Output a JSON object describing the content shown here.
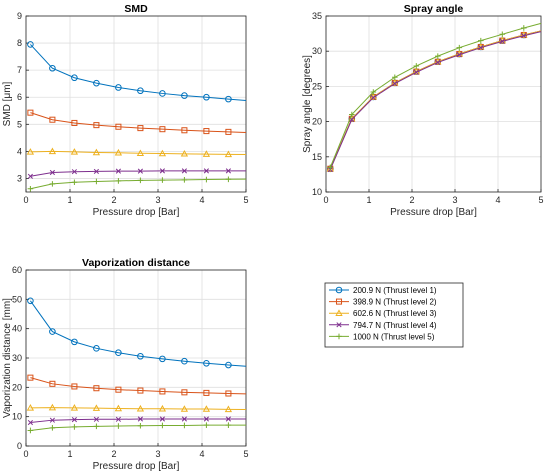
{
  "chart_data": [
    {
      "type": "line",
      "title": "SMD",
      "xlabel": "Pressure drop [Bar]",
      "ylabel": "SMD [μm]",
      "xlim": [
        0,
        5
      ],
      "ylim": [
        2.5,
        9
      ],
      "xticks": [
        "0",
        "1",
        "2",
        "3",
        "4",
        "5"
      ],
      "yticks": [
        "3",
        "4",
        "5",
        "6",
        "7",
        "8",
        "9"
      ],
      "grid": true,
      "x": [
        0.1,
        0.6,
        1.1,
        1.6,
        2.1,
        2.6,
        3.1,
        3.6,
        4.1,
        4.6
      ],
      "series": [
        {
          "name": "200.9 N (Thrust level 1)",
          "values": [
            7.95,
            7.07,
            6.72,
            6.52,
            6.36,
            6.24,
            6.14,
            6.06,
            6.0,
            5.93
          ]
        },
        {
          "name": "398.9 N (Thrust level 2)",
          "values": [
            5.43,
            5.17,
            5.05,
            4.97,
            4.91,
            4.86,
            4.82,
            4.78,
            4.75,
            4.72
          ]
        },
        {
          "name": "602.6 N (Thrust level 3)",
          "values": [
            3.98,
            4.0,
            3.98,
            3.96,
            3.95,
            3.93,
            3.92,
            3.91,
            3.9,
            3.89
          ]
        },
        {
          "name": "794.7 N (Thrust level 4)",
          "values": [
            3.08,
            3.22,
            3.25,
            3.26,
            3.27,
            3.27,
            3.28,
            3.28,
            3.28,
            3.28
          ]
        },
        {
          "name": "1000 N (Thrust level 5)",
          "values": [
            2.62,
            2.8,
            2.86,
            2.89,
            2.91,
            2.93,
            2.94,
            2.95,
            2.96,
            2.97
          ]
        }
      ]
    },
    {
      "type": "line",
      "title": "Spray angle",
      "xlabel": "Pressure drop [Bar]",
      "ylabel": "Spray angle [degrees]",
      "xlim": [
        0,
        5
      ],
      "ylim": [
        10,
        35
      ],
      "xticks": [
        "0",
        "1",
        "2",
        "3",
        "4",
        "5"
      ],
      "yticks": [
        "10",
        "15",
        "20",
        "25",
        "30",
        "35"
      ],
      "grid": true,
      "x": [
        0.1,
        0.6,
        1.1,
        1.6,
        2.1,
        2.6,
        3.1,
        3.6,
        4.1,
        4.6
      ],
      "series": [
        {
          "name": "200.9 N (Thrust level 1)",
          "values": [
            13.3,
            20.4,
            23.5,
            25.5,
            27.1,
            28.5,
            29.6,
            30.6,
            31.5,
            32.3
          ]
        },
        {
          "name": "398.9 N (Thrust level 2)",
          "values": [
            13.3,
            20.4,
            23.5,
            25.5,
            27.1,
            28.5,
            29.6,
            30.6,
            31.5,
            32.3
          ]
        },
        {
          "name": "602.6 N (Thrust level 3)",
          "values": [
            13.3,
            20.4,
            23.5,
            25.5,
            27.1,
            28.5,
            29.6,
            30.6,
            31.5,
            32.3
          ]
        },
        {
          "name": "794.7 N (Thrust level 4)",
          "values": [
            13.2,
            20.3,
            23.4,
            25.4,
            27.0,
            28.4,
            29.5,
            30.5,
            31.4,
            32.2
          ]
        },
        {
          "name": "1000 N (Thrust level 5)",
          "values": [
            13.5,
            21.0,
            24.2,
            26.3,
            27.9,
            29.3,
            30.5,
            31.5,
            32.4,
            33.3
          ]
        }
      ]
    },
    {
      "type": "line",
      "title": "Vaporization distance",
      "xlabel": "Pressure drop [Bar]",
      "ylabel": "Vaporization distance [mm]",
      "xlim": [
        0,
        5
      ],
      "ylim": [
        0,
        60
      ],
      "xticks": [
        "0",
        "1",
        "2",
        "3",
        "4",
        "5"
      ],
      "yticks": [
        "0",
        "10",
        "20",
        "30",
        "40",
        "50",
        "60"
      ],
      "grid": true,
      "x": [
        0.1,
        0.6,
        1.1,
        1.6,
        2.1,
        2.6,
        3.1,
        3.6,
        4.1,
        4.6
      ],
      "series": [
        {
          "name": "200.9 N (Thrust level 1)",
          "values": [
            49.5,
            39.0,
            35.5,
            33.3,
            31.8,
            30.6,
            29.7,
            28.9,
            28.2,
            27.6
          ]
        },
        {
          "name": "398.9 N (Thrust level 2)",
          "values": [
            23.3,
            21.2,
            20.3,
            19.7,
            19.2,
            18.9,
            18.6,
            18.3,
            18.1,
            17.9
          ]
        },
        {
          "name": "602.6 N (Thrust level 3)",
          "values": [
            13.0,
            13.1,
            13.0,
            12.9,
            12.8,
            12.7,
            12.7,
            12.6,
            12.6,
            12.5
          ]
        },
        {
          "name": "794.7 N (Thrust level 4)",
          "values": [
            8.0,
            8.8,
            9.0,
            9.1,
            9.1,
            9.2,
            9.2,
            9.2,
            9.2,
            9.2
          ]
        },
        {
          "name": "1000 N (Thrust level 5)",
          "values": [
            5.3,
            6.2,
            6.5,
            6.7,
            6.8,
            6.9,
            7.0,
            7.0,
            7.1,
            7.1
          ]
        }
      ]
    }
  ],
  "legend": {
    "placement": "bottom-right",
    "entries": [
      {
        "label": "200.9 N (Thrust level 1)",
        "color": "#0072BD",
        "marker": "circle"
      },
      {
        "label": "398.9 N (Thrust level 2)",
        "color": "#D95319",
        "marker": "square"
      },
      {
        "label": "602.6 N (Thrust level 3)",
        "color": "#EDB120",
        "marker": "triangle"
      },
      {
        "label": "794.7 N (Thrust level 4)",
        "color": "#7E2F8E",
        "marker": "x"
      },
      {
        "label": "1000 N (Thrust level 5)",
        "color": "#77AC30",
        "marker": "plus"
      }
    ]
  }
}
